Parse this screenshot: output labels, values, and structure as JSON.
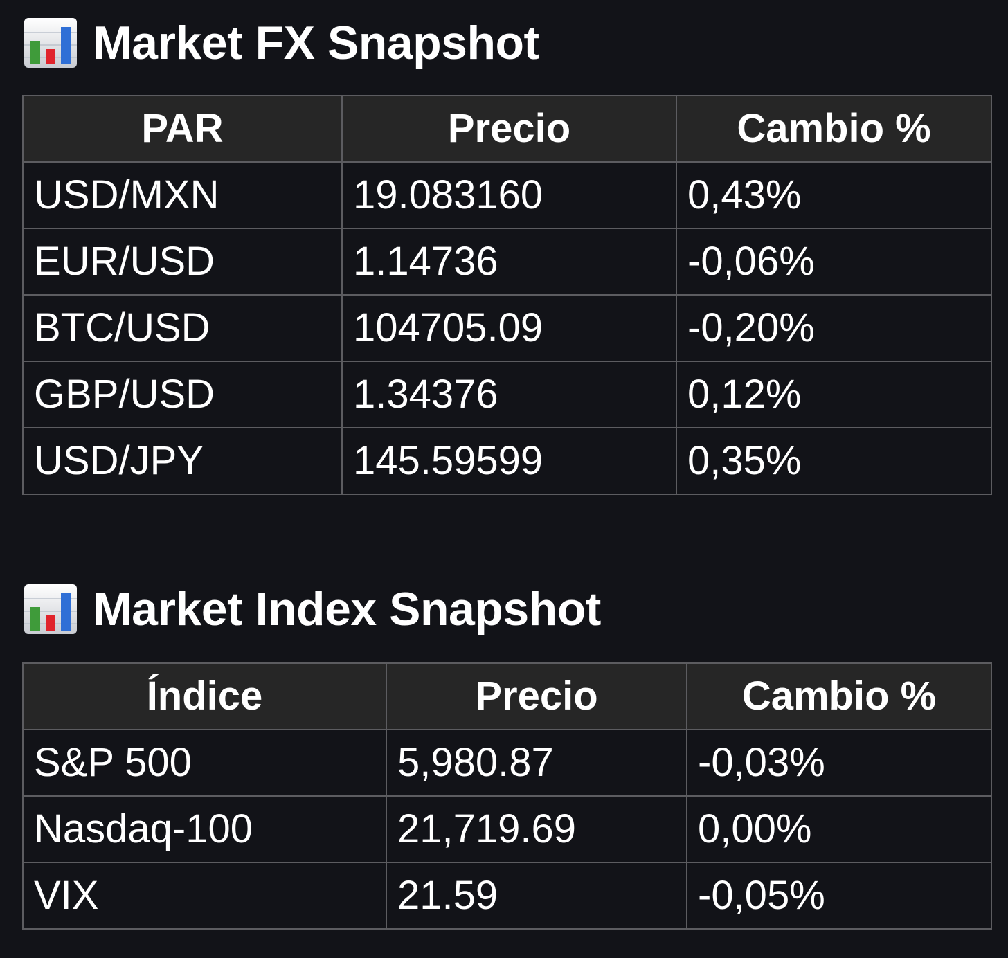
{
  "fx": {
    "icon": "bar-chart-icon",
    "title": "Market FX Snapshot",
    "headers": [
      "PAR",
      "Precio",
      "Cambio %"
    ],
    "rows": [
      {
        "pair": "USD/MXN",
        "price": "19.083160",
        "change": "0,43%",
        "direction": "up"
      },
      {
        "pair": "EUR/USD",
        "price": "1.14736",
        "change": "-0,06%",
        "direction": "down"
      },
      {
        "pair": "BTC/USD",
        "price": "104705.09",
        "change": "-0,20%",
        "direction": "down"
      },
      {
        "pair": "GBP/USD",
        "price": "1.34376",
        "change": "0,12%",
        "direction": "up"
      },
      {
        "pair": "USD/JPY",
        "price": "145.59599",
        "change": "0,35%",
        "direction": "up"
      }
    ]
  },
  "index": {
    "icon": "bar-chart-icon",
    "title": "Market Index Snapshot",
    "headers": [
      "Índice",
      "Precio",
      "Cambio %"
    ],
    "rows": [
      {
        "name": "S&P 500",
        "price": "5,980.87",
        "change": "-0,03%",
        "direction": "down"
      },
      {
        "name": "Nasdaq-100",
        "price": "21,719.69",
        "change": "0,00%",
        "direction": "down"
      },
      {
        "name": "VIX",
        "price": "21.59",
        "change": "-0,05%",
        "direction": "down"
      }
    ]
  },
  "colors": {
    "background": "#121318",
    "header_bg": "#262626",
    "border": "#5c5c60",
    "positive": "#5fb548",
    "negative": "#f0613f"
  }
}
